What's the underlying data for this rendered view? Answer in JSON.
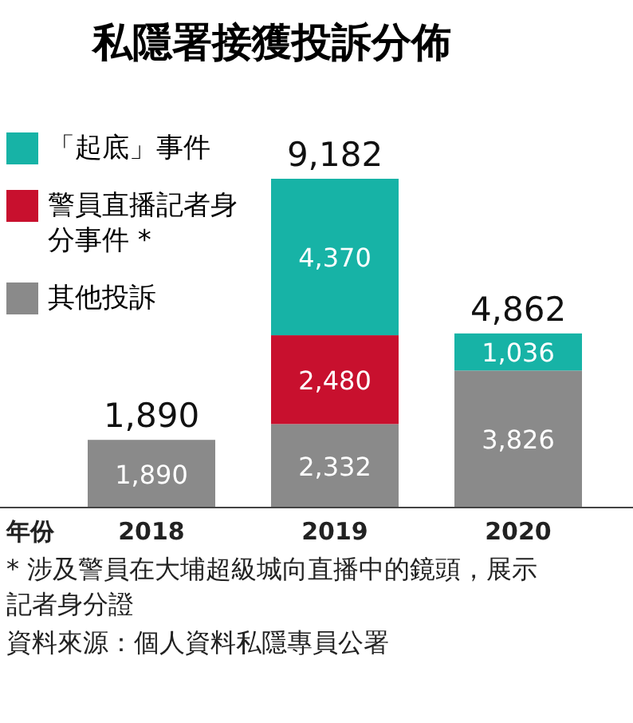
{
  "chart_data": {
    "type": "bar",
    "title": "私隱署接獲投訴分佈",
    "xlabel": "年份",
    "categories": [
      "2018",
      "2019",
      "2020"
    ],
    "stacked": true,
    "legend": "top left",
    "series": [
      {
        "name": "其他投訴",
        "color": "#8a8a8a",
        "values": [
          1890,
          2332,
          3826
        ],
        "value_labels": [
          "1,890",
          "2,332",
          "3,826"
        ]
      },
      {
        "name": "警員直播記者身分事件 *",
        "color": "#c8102e",
        "values": [
          null,
          2480,
          null
        ],
        "value_labels": [
          null,
          "2,480",
          null
        ]
      },
      {
        "name": "「起底」事件",
        "color": "#17b3a6",
        "values": [
          null,
          4370,
          1036
        ],
        "value_labels": [
          null,
          "4,370",
          "1,036"
        ]
      }
    ],
    "totals": [
      "1,890",
      "9,182",
      "4,862"
    ],
    "annotations": [
      "* 涉及警員在大埔超級城向直播中的鏡頭，展示記者身分證",
      "資料來源：個人資料私隱專員公署"
    ]
  }
}
